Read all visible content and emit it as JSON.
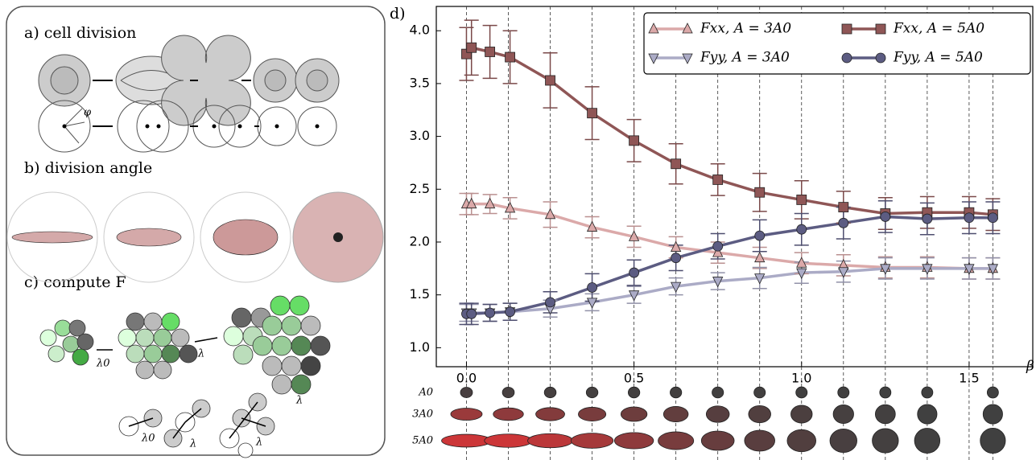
{
  "left_panel": {
    "labels": [
      "a) cell division",
      "b) division angle",
      "c) compute F"
    ],
    "phi": "φ",
    "lambda0": "λ0",
    "lambda": "λ"
  },
  "chart_data": {
    "type": "line",
    "panel_label": "d)",
    "x_label": "β",
    "x": [
      0,
      0.015,
      0.07,
      0.13,
      0.25,
      0.375,
      0.5,
      0.625,
      0.75,
      0.875,
      1.0,
      1.125,
      1.25,
      1.375,
      1.5,
      1.5708
    ],
    "series": [
      {
        "name": "Fxx, A = 3A0",
        "color": "#dba9a9",
        "marker": "^",
        "values": [
          2.36,
          2.36,
          2.36,
          2.32,
          2.26,
          2.14,
          2.05,
          1.95,
          1.9,
          1.85,
          1.8,
          1.78,
          1.76,
          1.76,
          1.75,
          1.75
        ],
        "errors": [
          0.1,
          0.1,
          0.09,
          0.1,
          0.12,
          0.1,
          0.1,
          0.1,
          0.1,
          0.1,
          0.1,
          0.1,
          0.1,
          0.1,
          0.1,
          0.1
        ]
      },
      {
        "name": "Fxx, A = 5A0",
        "color": "#8f5656",
        "marker": "s",
        "values": [
          3.78,
          3.84,
          3.8,
          3.75,
          3.53,
          3.22,
          2.96,
          2.74,
          2.59,
          2.47,
          2.4,
          2.33,
          2.27,
          2.28,
          2.28,
          2.26
        ],
        "errors": [
          0.25,
          0.26,
          0.25,
          0.25,
          0.26,
          0.25,
          0.2,
          0.19,
          0.15,
          0.18,
          0.18,
          0.15,
          0.15,
          0.15,
          0.15,
          0.15
        ]
      },
      {
        "name": "Fyy, A = 3A0",
        "color": "#ababc6",
        "marker": "v",
        "values": [
          1.33,
          1.33,
          1.33,
          1.34,
          1.37,
          1.43,
          1.5,
          1.58,
          1.63,
          1.66,
          1.71,
          1.72,
          1.75,
          1.75,
          1.75,
          1.75
        ],
        "errors": [
          0.08,
          0.08,
          0.08,
          0.08,
          0.08,
          0.08,
          0.08,
          0.08,
          0.08,
          0.1,
          0.1,
          0.1,
          0.1,
          0.1,
          0.1,
          0.1
        ]
      },
      {
        "name": "Fyy, A = 5A0",
        "color": "#5c5c82",
        "marker": "o",
        "values": [
          1.32,
          1.32,
          1.33,
          1.34,
          1.43,
          1.57,
          1.71,
          1.85,
          1.96,
          2.06,
          2.12,
          2.18,
          2.24,
          2.22,
          2.23,
          2.23
        ],
        "errors": [
          0.1,
          0.1,
          0.08,
          0.08,
          0.1,
          0.13,
          0.12,
          0.12,
          0.12,
          0.15,
          0.15,
          0.15,
          0.15,
          0.15,
          0.15,
          0.15
        ]
      }
    ],
    "xlim": [
      -0.09,
      1.69
    ],
    "ylim": [
      0.82,
      4.23
    ],
    "xticks": [
      {
        "value": 0,
        "label": "0.0"
      },
      0.5,
      {
        "value": 1,
        "label": "1.0"
      },
      1.5
    ],
    "yticks": [
      {
        "value": 1,
        "label": "1.0"
      },
      1.5,
      {
        "value": 2,
        "label": "2.0"
      },
      2.5,
      {
        "value": 3,
        "label": "3.0"
      },
      3.5,
      {
        "value": 4,
        "label": "4.0"
      }
    ],
    "guide_lines": [
      0,
      0.125,
      0.25,
      0.375,
      0.5,
      0.625,
      0.75,
      0.875,
      1.0,
      1.125,
      1.25,
      1.375,
      1.5,
      1.5708
    ],
    "legend": "upper right",
    "shapes": {
      "beta": [
        0,
        0.125,
        0.25,
        0.375,
        0.5,
        0.625,
        0.75,
        0.875,
        1.0,
        1.125,
        1.25,
        1.375,
        1.5708
      ],
      "rows": [
        {
          "label": "A0",
          "area": 1,
          "aspect": [
            1.15,
            1.12,
            1.1,
            1.08,
            1.06,
            1.05,
            1.04,
            1.03,
            1.02,
            1.01,
            1.0,
            1.0,
            1.0
          ]
        },
        {
          "label": "3A0",
          "area": 3,
          "aspect": [
            2.6,
            2.4,
            2.2,
            2.0,
            1.8,
            1.6,
            1.4,
            1.3,
            1.2,
            1.1,
            1.05,
            1.0,
            1.0
          ]
        },
        {
          "label": "5A0",
          "area": 5,
          "aspect": [
            3.9,
            3.6,
            3.2,
            2.8,
            2.4,
            2.0,
            1.7,
            1.45,
            1.3,
            1.15,
            1.08,
            1.02,
            1.0
          ]
        }
      ]
    }
  }
}
